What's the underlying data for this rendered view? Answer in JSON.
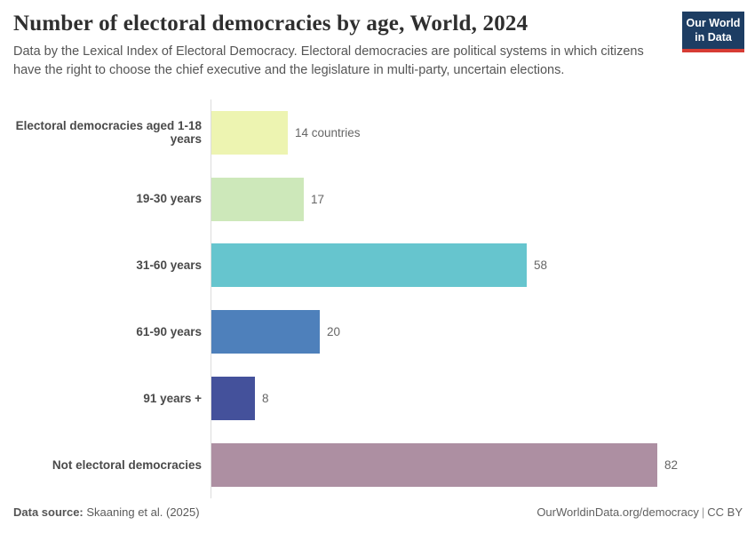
{
  "header": {
    "title": "Number of electoral democracies by age, World, 2024",
    "subtitle": "Data by the Lexical Index of Electoral Democracy. Electoral democracies are political systems in which citizens have the right to choose the chief executive and the legislature in multi-party, uncertain elections.",
    "logo": {
      "line1": "Our World",
      "line2": "in Data",
      "bg_color": "#1d3d63",
      "accent_color": "#d73c34"
    }
  },
  "chart_data": {
    "type": "bar",
    "orientation": "horizontal",
    "title": "Number of electoral democracies by age, World, 2024",
    "categories": [
      "Electoral democracies aged 1-18 years",
      "19-30 years",
      "31-60 years",
      "61-90 years",
      "91 years +",
      "Not electoral democracies"
    ],
    "values": [
      14,
      17,
      58,
      20,
      8,
      82
    ],
    "value_labels": [
      "14 countries",
      "17",
      "58",
      "20",
      "8",
      "82"
    ],
    "bar_colors": [
      "#edf4b1",
      "#cde8ba",
      "#66c5ce",
      "#4e80bb",
      "#44519b",
      "#ad8fa2"
    ],
    "xlabel": "",
    "ylabel": "",
    "xlim": [
      0,
      82
    ],
    "grid": false,
    "legend": "none"
  },
  "footer": {
    "datasource_label": "Data source:",
    "datasource_value": "Skaaning et al. (2025)",
    "url": "OurWorldinData.org/democracy",
    "separator": "|",
    "license": "CC BY"
  }
}
